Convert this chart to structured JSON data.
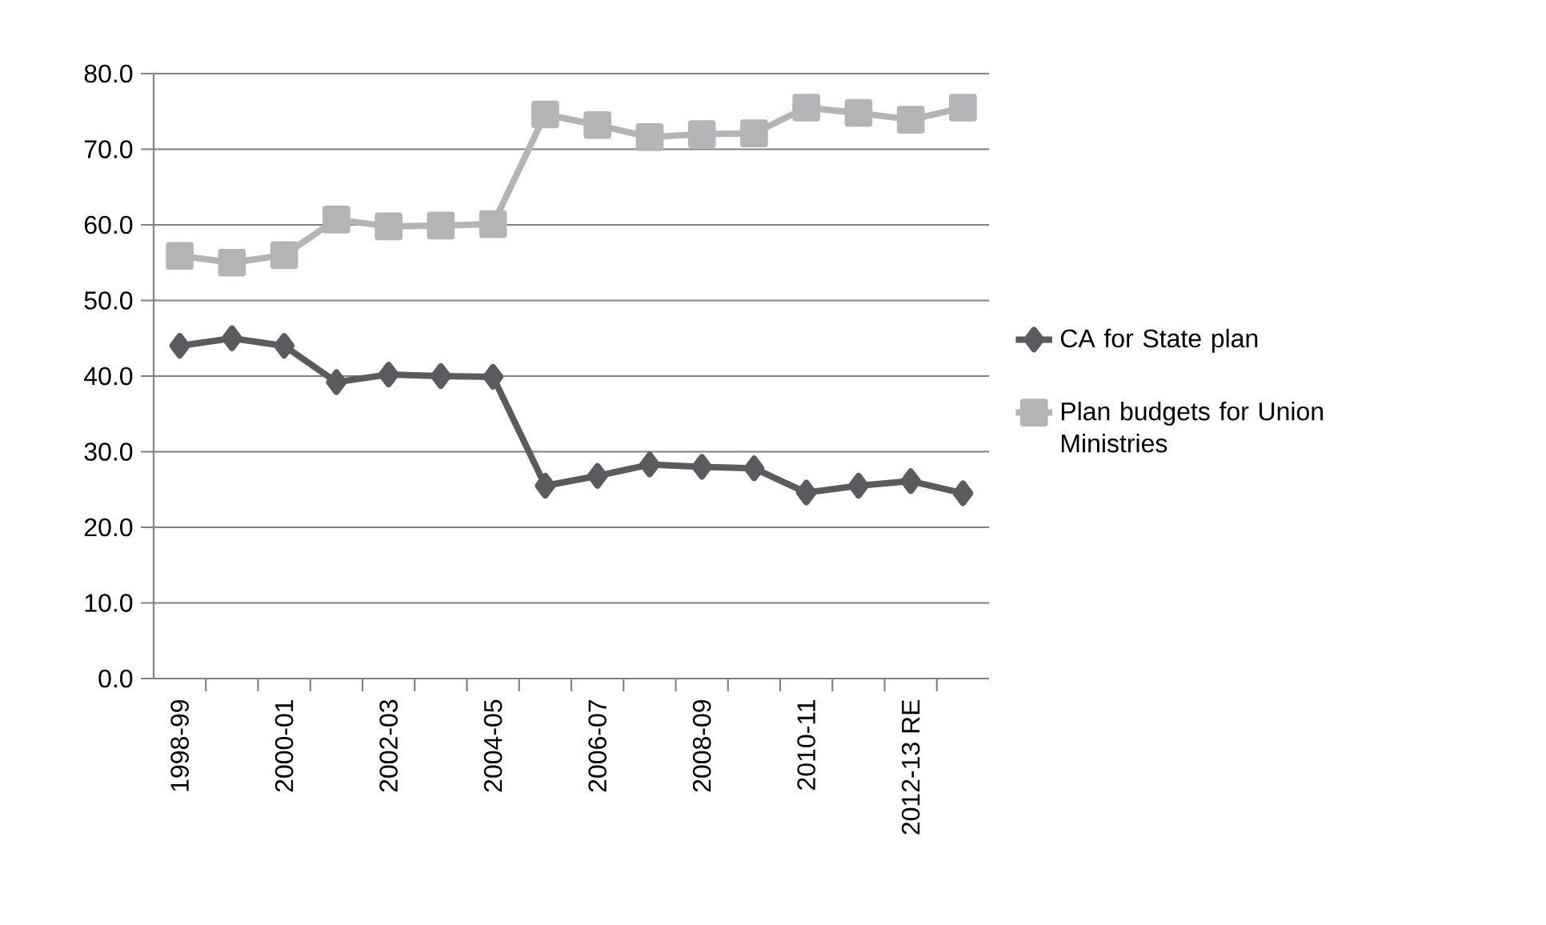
{
  "chart_data": {
    "type": "line",
    "categories": [
      "1998-99",
      null,
      "2000-01",
      null,
      "2002-03",
      null,
      "2004-05",
      null,
      "2006-07",
      null,
      "2008-09",
      null,
      "2010-11",
      null,
      "2012-13 RE",
      null
    ],
    "series": [
      {
        "name": "CA for State plan",
        "color": "#595b5e",
        "marker": "diamond",
        "values": [
          44.0,
          45.0,
          44.0,
          39.2,
          40.2,
          40.0,
          39.9,
          25.5,
          26.8,
          28.3,
          28.0,
          27.8,
          24.6,
          25.5,
          26.1,
          24.5
        ]
      },
      {
        "name": "Plan budgets for Union Ministries",
        "color": "#b2b4b6",
        "marker": "square",
        "values": [
          55.9,
          55.0,
          56.0,
          60.7,
          59.8,
          59.9,
          60.1,
          74.6,
          73.2,
          71.6,
          72.0,
          72.1,
          75.5,
          74.8,
          73.9,
          75.5
        ]
      }
    ],
    "ylim": [
      0,
      80
    ],
    "yticks": [
      {
        "value": 0,
        "label": "0.0"
      },
      {
        "value": 10,
        "label": "10.0"
      },
      {
        "value": 20,
        "label": "20.0"
      },
      {
        "value": 30,
        "label": "30.0"
      },
      {
        "value": 40,
        "label": "40.0"
      },
      {
        "value": 50,
        "label": "50.0"
      },
      {
        "value": 60,
        "label": "60.0"
      },
      {
        "value": 70,
        "label": "70.0"
      },
      {
        "value": 80,
        "label": "80.0"
      }
    ],
    "grid": "y",
    "legend": "right",
    "line_style": "solid"
  }
}
